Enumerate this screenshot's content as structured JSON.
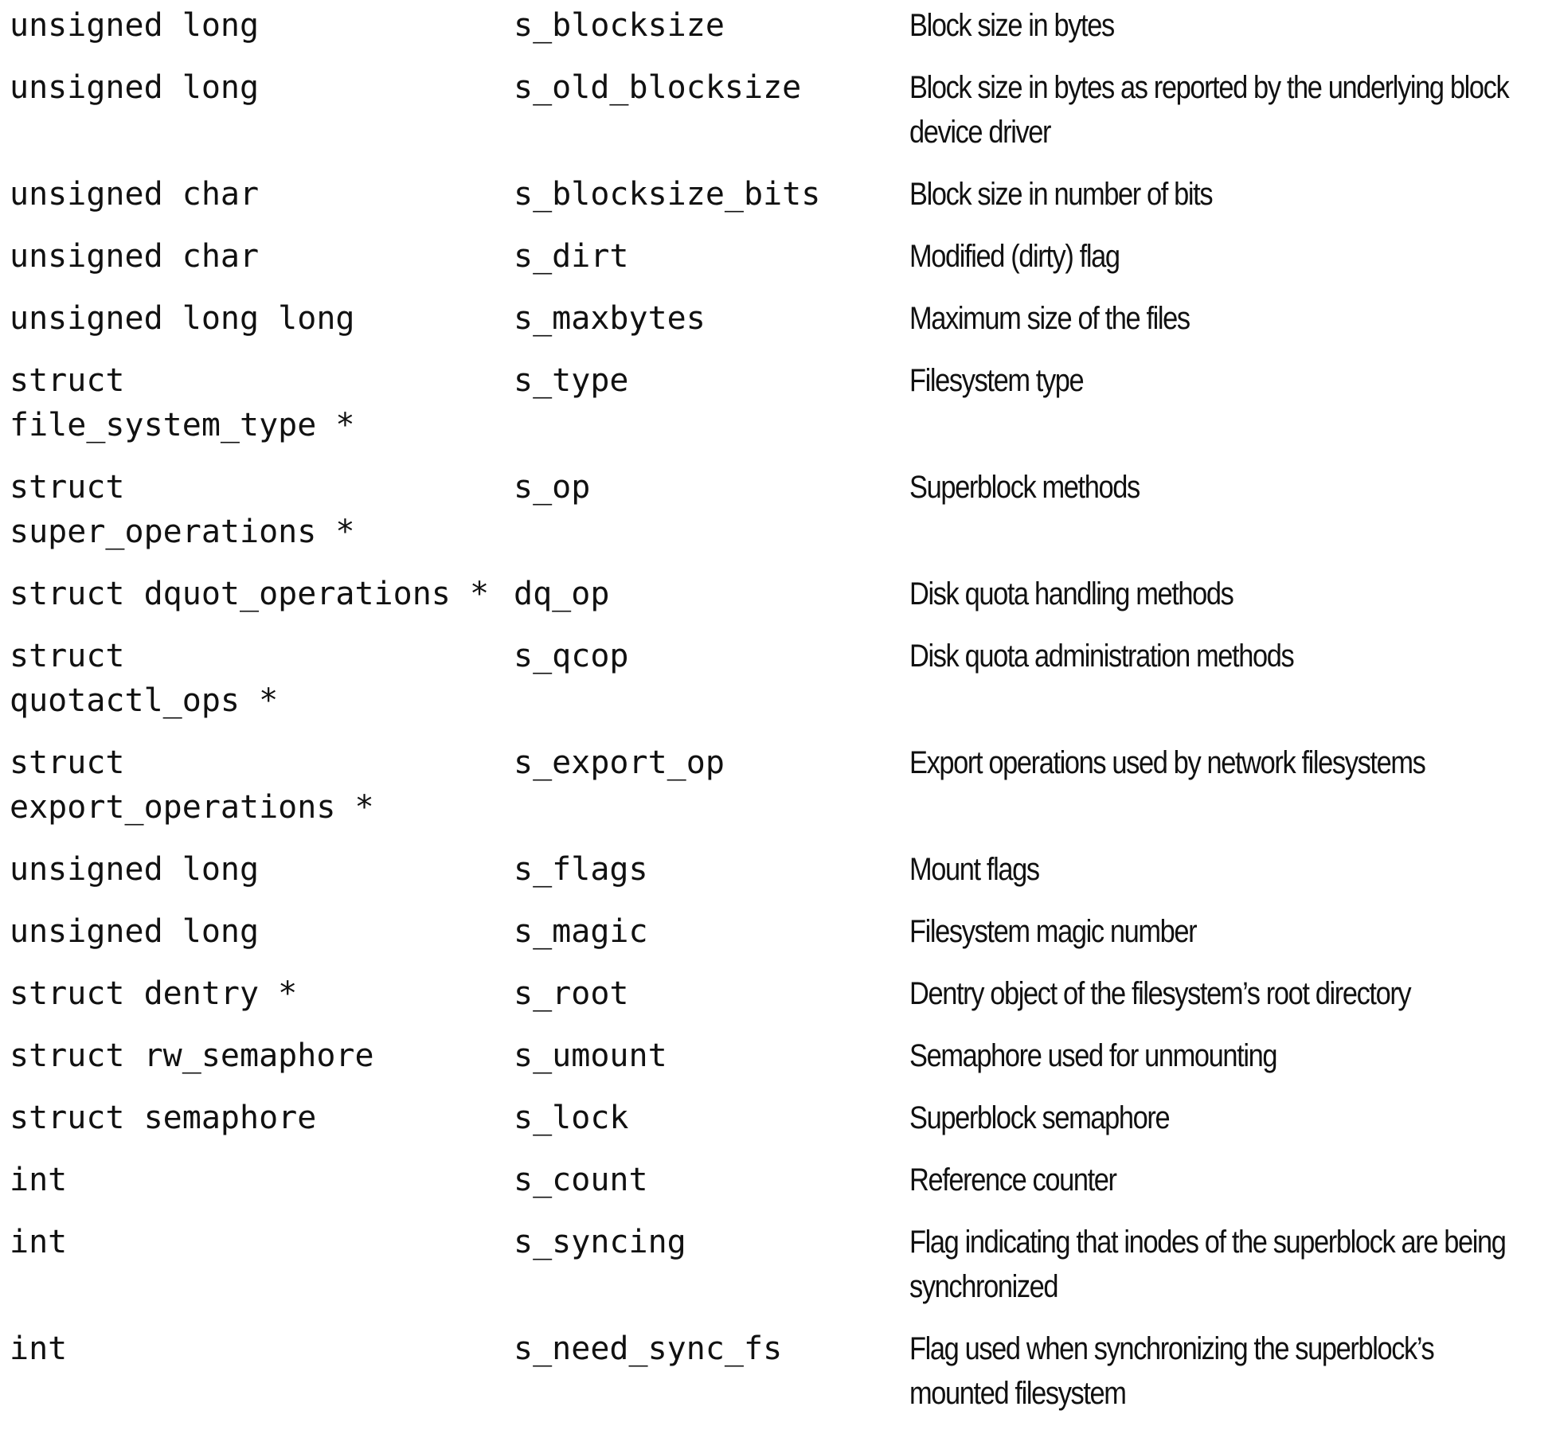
{
  "table": {
    "rows": [
      {
        "type": "unsigned long",
        "field": "s_blocksize",
        "description": "Block size in bytes"
      },
      {
        "type": "unsigned long",
        "field": "s_old_blocksize",
        "description": "Block size in bytes as reported by the underlying block device driver"
      },
      {
        "type": "unsigned char",
        "field": "s_blocksize_bits",
        "description": "Block size in number of bits"
      },
      {
        "type": "unsigned char",
        "field": "s_dirt",
        "description": "Modified (dirty) flag"
      },
      {
        "type": "unsigned long long",
        "field": "s_maxbytes",
        "description": "Maximum size of the files"
      },
      {
        "type": "struct\nfile_system_type *",
        "field": "s_type",
        "description": "Filesystem type"
      },
      {
        "type": "struct\nsuper_operations *",
        "field": "s_op",
        "description": "Superblock methods"
      },
      {
        "type": "struct dquot_operations *",
        "field": "dq_op",
        "description": "Disk quota handling methods"
      },
      {
        "type": "struct\nquotactl_ops *",
        "field": "s_qcop",
        "description": "Disk quota administration methods"
      },
      {
        "type": "struct\nexport_operations *",
        "field": "s_export_op",
        "description": "Export operations used by network filesystems"
      },
      {
        "type": "unsigned long",
        "field": "s_flags",
        "description": "Mount flags"
      },
      {
        "type": "unsigned long",
        "field": "s_magic",
        "description": "Filesystem magic number"
      },
      {
        "type": "struct dentry *",
        "field": "s_root",
        "description": "Dentry object of the filesystem’s root directory"
      },
      {
        "type": "struct rw_semaphore",
        "field": "s_umount",
        "description": "Semaphore used for unmounting"
      },
      {
        "type": "struct semaphore",
        "field": "s_lock",
        "description": "Superblock semaphore"
      },
      {
        "type": "int",
        "field": "s_count",
        "description": "Reference counter"
      },
      {
        "type": "int",
        "field": "s_syncing",
        "description": "Flag indicating that inodes of the superblock are being synchronized"
      },
      {
        "type": "int",
        "field": "s_need_sync_fs",
        "description": "Flag used when synchronizing the superblock’s mounted filesystem"
      }
    ]
  }
}
